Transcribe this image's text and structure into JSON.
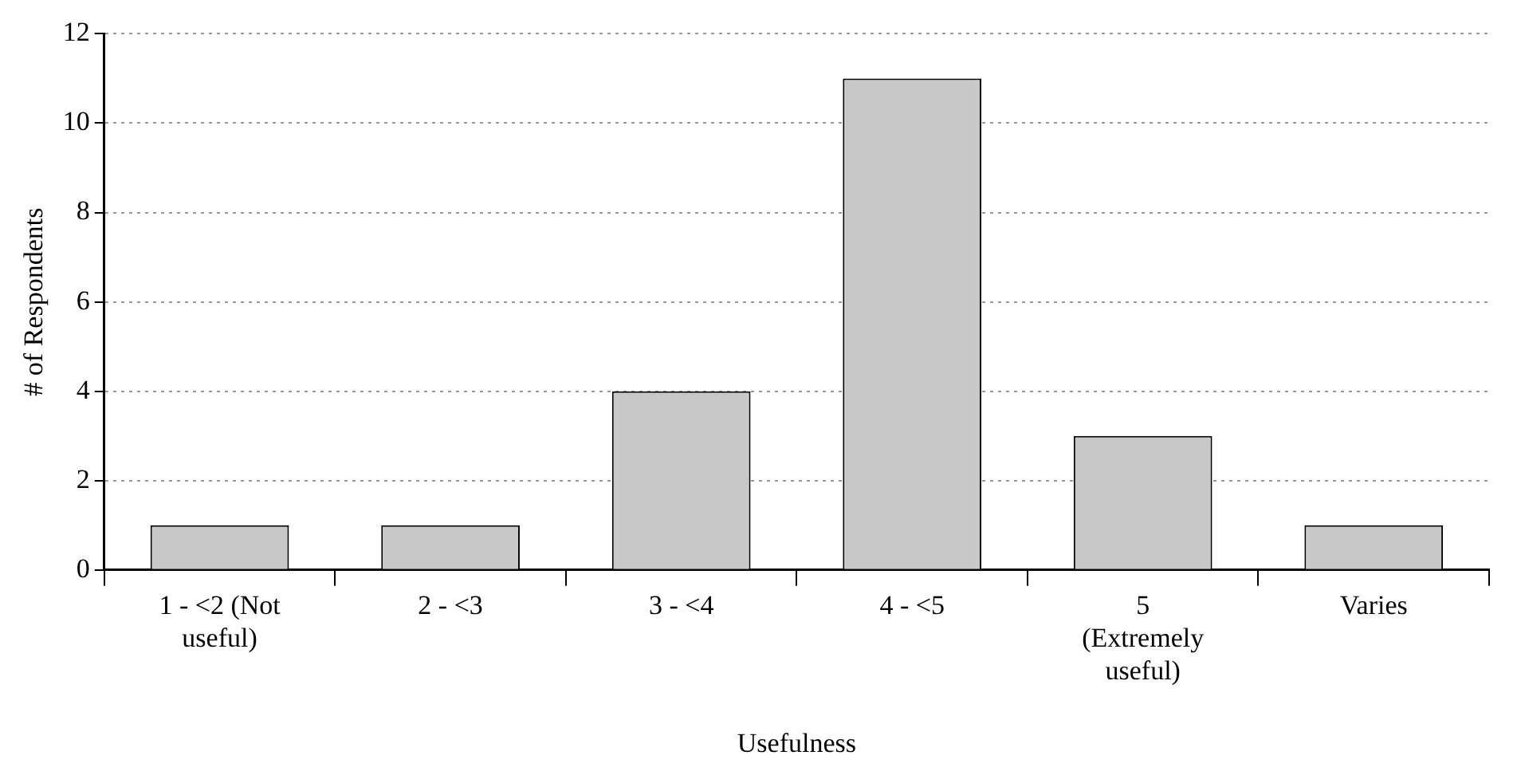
{
  "chart_data": {
    "type": "bar",
    "xlabel": "Usefulness",
    "ylabel": "# of Respondents",
    "categories": [
      "1 - <2 (Not useful)",
      "2 - <3",
      "3 - <4",
      "4 - <5",
      "5 (Extremely useful)",
      "Varies"
    ],
    "values": [
      1,
      1,
      4,
      11,
      3,
      1
    ],
    "color": "#c8c8c8",
    "ylim": [
      0,
      12
    ],
    "yticks": [
      0,
      2,
      4,
      6,
      8,
      10,
      12
    ],
    "grid": "y",
    "legend": false
  }
}
